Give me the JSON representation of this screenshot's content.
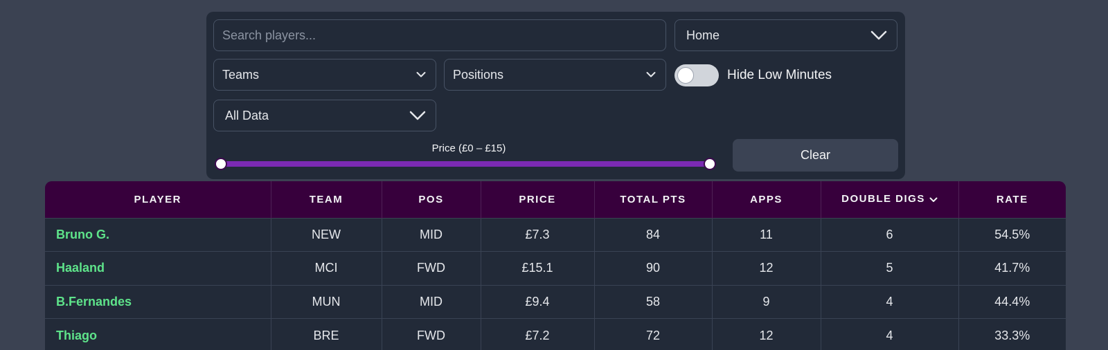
{
  "filters": {
    "search_placeholder": "Search players...",
    "venue_value": "Home",
    "teams_value": "Teams",
    "positions_value": "Positions",
    "data_value": "All Data",
    "hide_low_minutes_label": "Hide Low Minutes",
    "hide_low_minutes_on": false,
    "price_label": "Price (£0 – £15)",
    "price_min": 0,
    "price_max": 15,
    "clear_label": "Clear"
  },
  "colors": {
    "accent": "#7b2ab3",
    "header_bg": "#37003c",
    "player_name": "#5ee38a"
  },
  "table": {
    "columns": [
      "PLAYER",
      "TEAM",
      "POS",
      "PRICE",
      "TOTAL PTS",
      "APPS",
      "DOUBLE DIGS",
      "RATE"
    ],
    "sorted_column": "DOUBLE DIGS",
    "sort_icon": "chevron-down-icon",
    "rows": [
      {
        "player": "Bruno G.",
        "team": "NEW",
        "pos": "MID",
        "price": "£7.3",
        "total_pts": "84",
        "apps": "11",
        "double_digs": "6",
        "rate": "54.5%"
      },
      {
        "player": "Haaland",
        "team": "MCI",
        "pos": "FWD",
        "price": "£15.1",
        "total_pts": "90",
        "apps": "12",
        "double_digs": "5",
        "rate": "41.7%"
      },
      {
        "player": "B.Fernandes",
        "team": "MUN",
        "pos": "MID",
        "price": "£9.4",
        "total_pts": "58",
        "apps": "9",
        "double_digs": "4",
        "rate": "44.4%"
      },
      {
        "player": "Thiago",
        "team": "BRE",
        "pos": "FWD",
        "price": "£7.2",
        "total_pts": "72",
        "apps": "12",
        "double_digs": "4",
        "rate": "33.3%"
      }
    ]
  }
}
